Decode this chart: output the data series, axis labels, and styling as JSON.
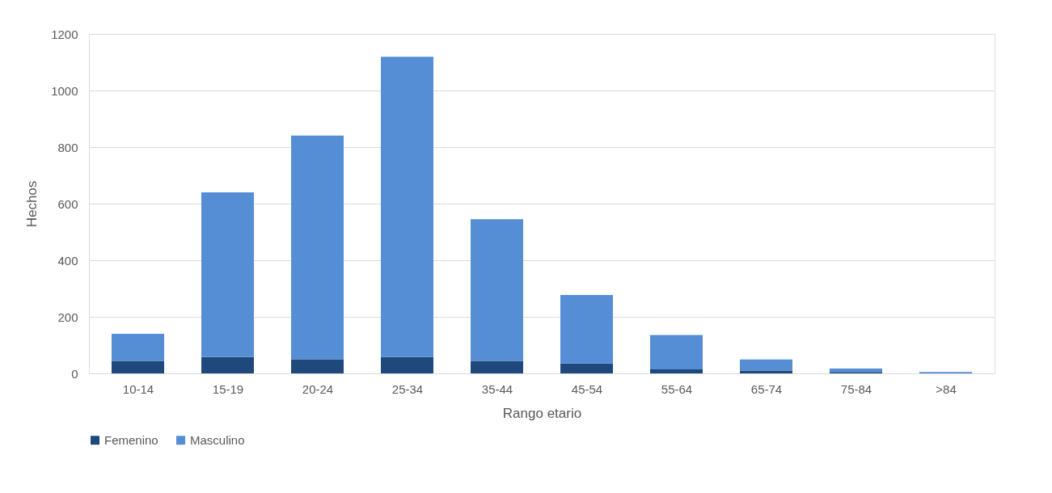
{
  "chart_data": {
    "type": "bar",
    "stacked": true,
    "xlabel": "Rango etario",
    "ylabel": "Hechos",
    "categories": [
      "10-14",
      "15-19",
      "20-24",
      "25-34",
      "35-44",
      "45-54",
      "55-64",
      "65-74",
      "75-84",
      ">84"
    ],
    "series": [
      {
        "name": "Femenino",
        "color": "#1f497d",
        "values": [
          44,
          58,
          50,
          58,
          44,
          35,
          14,
          10,
          5,
          null
        ]
      },
      {
        "name": "Masculino",
        "color": "#558ed5",
        "values": [
          96,
          582,
          791,
          1061,
          501,
          242,
          122,
          39,
          12,
          5
        ]
      }
    ],
    "ylim": [
      0,
      1200
    ],
    "yticks": [
      0,
      200,
      400,
      600,
      800,
      1000,
      1200
    ],
    "grid": "y",
    "legend": "bottom"
  }
}
